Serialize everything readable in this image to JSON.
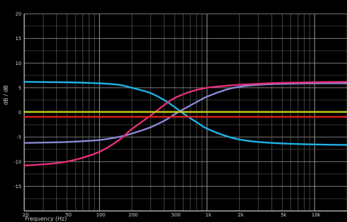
{
  "chart": {
    "title": "",
    "ylabel": "dB / dB",
    "xlabel": "Frequency (Hz)"
  },
  "chart_data": {
    "type": "line",
    "xscale": "log",
    "xlim": [
      20,
      20000
    ],
    "ylim": [
      -20,
      20
    ],
    "grid": true,
    "y_ticks": [
      20,
      15,
      10,
      5,
      0,
      -5,
      -10,
      -15
    ],
    "x_ticks": [
      {
        "value": 20,
        "label": "20"
      },
      {
        "value": 50,
        "label": "50"
      },
      {
        "value": 100,
        "label": "100"
      },
      {
        "value": 200,
        "label": "200"
      },
      {
        "value": 500,
        "label": "500"
      },
      {
        "value": 1000,
        "label": "1k"
      },
      {
        "value": 2000,
        "label": "2k"
      },
      {
        "value": 5000,
        "label": "5k"
      },
      {
        "value": 10000,
        "label": "10k"
      }
    ],
    "colors": {
      "background": "#000000",
      "grid": "#9a9a9a",
      "axis": "#d0d0d0"
    },
    "series": [
      {
        "color": "#1eb4e6",
        "x": [
          20,
          50,
          100,
          150,
          200,
          300,
          400,
          500,
          600,
          800,
          1000,
          1500,
          2000,
          3000,
          5000,
          10000,
          20000
        ],
        "y": [
          6.2,
          6.1,
          5.9,
          5.6,
          5.0,
          3.9,
          2.5,
          1.1,
          -0.2,
          -2.0,
          -3.3,
          -4.8,
          -5.5,
          -6.0,
          -6.3,
          -6.5,
          -6.6
        ]
      },
      {
        "color": "#8a8ad6",
        "x": [
          20,
          50,
          100,
          150,
          200,
          300,
          400,
          500,
          600,
          800,
          1000,
          1500,
          2000,
          3000,
          5000,
          10000,
          20000
        ],
        "y": [
          -6.2,
          -6.0,
          -5.6,
          -5.0,
          -4.3,
          -3.0,
          -1.7,
          -0.4,
          0.6,
          2.1,
          3.2,
          4.6,
          5.2,
          5.6,
          5.8,
          5.9,
          5.9
        ]
      },
      {
        "color": "#e8307a",
        "x": [
          20,
          40,
          60,
          100,
          150,
          200,
          300,
          400,
          500,
          700,
          1000,
          1500,
          2000,
          3000,
          5000,
          10000,
          20000
        ],
        "y": [
          -10.8,
          -10.3,
          -9.6,
          -8.0,
          -5.7,
          -3.4,
          -0.6,
          1.5,
          2.9,
          4.2,
          5.0,
          5.4,
          5.6,
          5.8,
          6.0,
          6.1,
          6.2
        ]
      },
      {
        "color": "#c8d21e",
        "x": [
          20,
          20000
        ],
        "y": [
          0.1,
          0.1
        ]
      },
      {
        "color": "#e02020",
        "x": [
          20,
          20000
        ],
        "y": [
          -0.9,
          -0.9
        ]
      }
    ]
  }
}
